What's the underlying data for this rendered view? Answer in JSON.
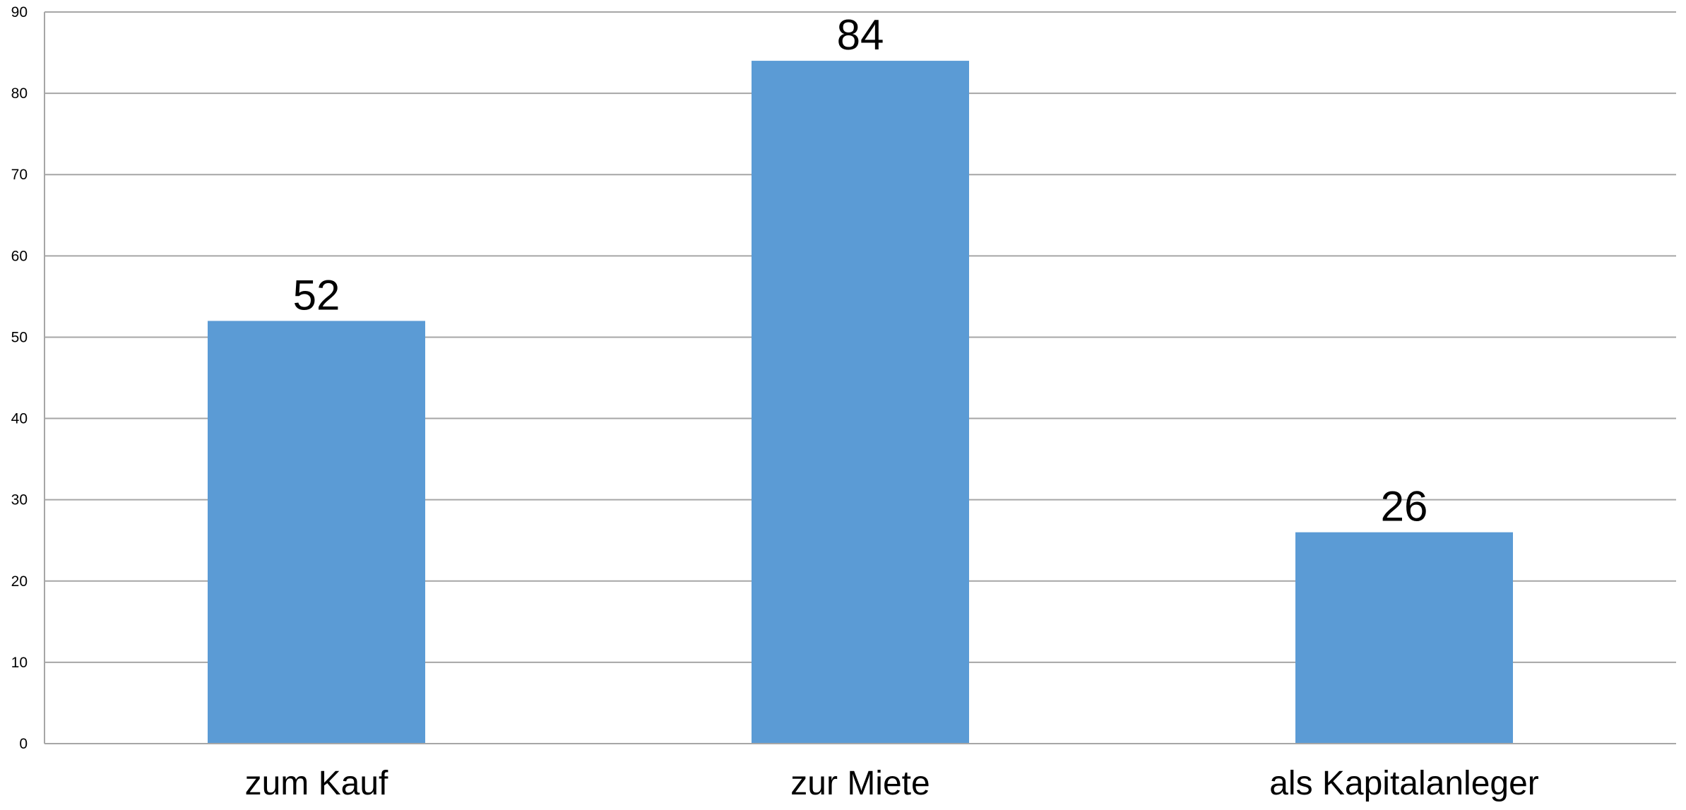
{
  "chart_data": {
    "type": "bar",
    "title": "",
    "xlabel": "",
    "ylabel": "",
    "categories": [
      "zum Kauf",
      "zur Miete",
      "als Kapitalanleger"
    ],
    "values": [
      52,
      84,
      26
    ],
    "data_labels": [
      "52",
      "84",
      "26"
    ],
    "ylim": [
      0,
      90
    ],
    "yticks": [
      0,
      10,
      20,
      30,
      40,
      50,
      60,
      70,
      80,
      90
    ],
    "ytick_labels": [
      "0",
      "10",
      "20",
      "30",
      "40",
      "50",
      "60",
      "70",
      "80",
      "90"
    ],
    "grid": true,
    "legend": "none",
    "bar_color": "#5b9bd5"
  }
}
